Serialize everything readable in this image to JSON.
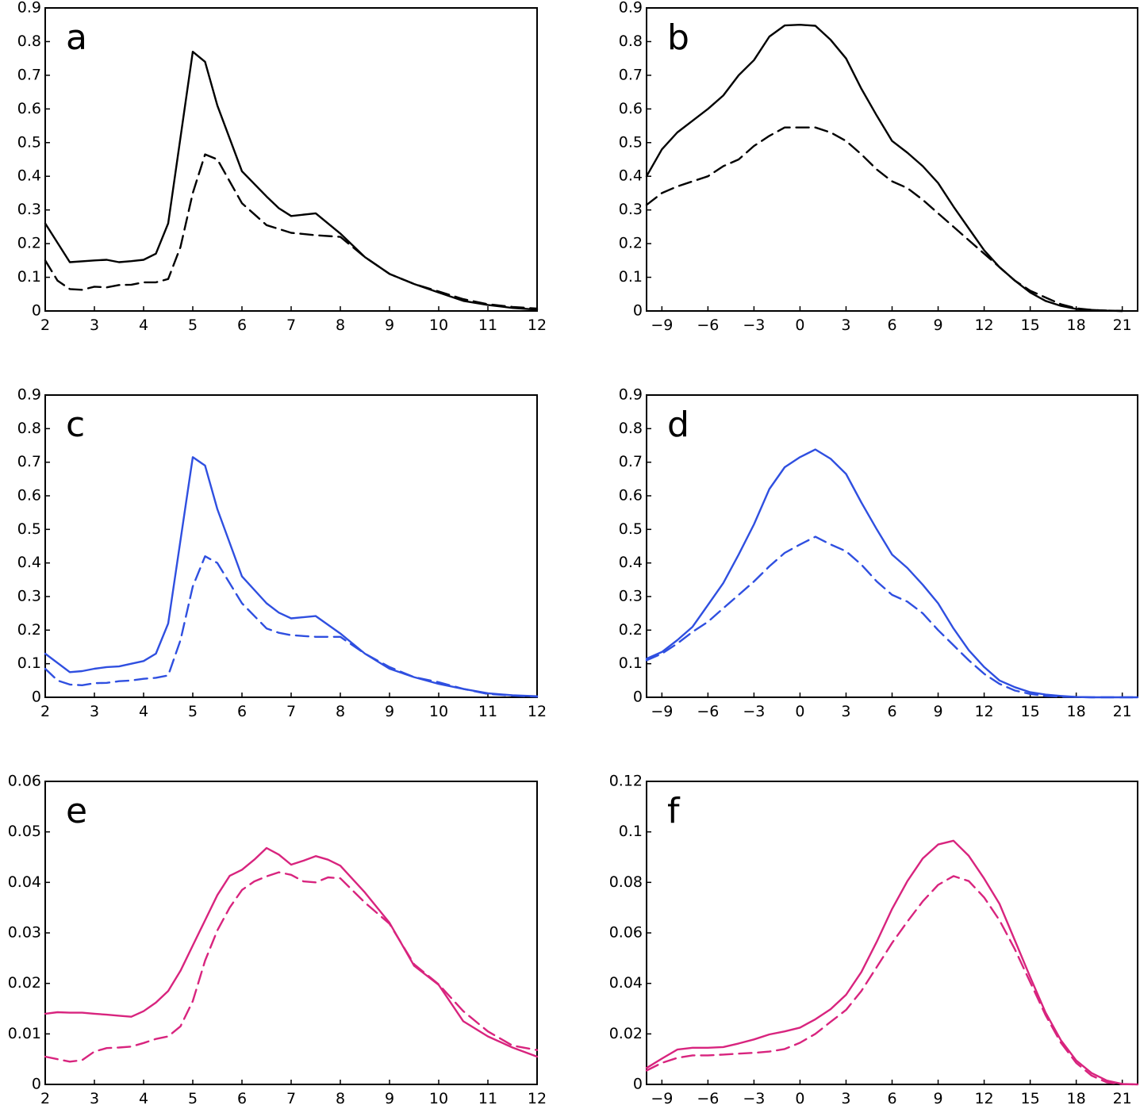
{
  "chart_data": [
    {
      "panel": "a",
      "type": "line",
      "x_ticks": [
        "2",
        "3",
        "4",
        "5",
        "6",
        "7",
        "8",
        "9",
        "10",
        "11",
        "12"
      ],
      "y_ticks": [
        "0",
        "0.1",
        "0.2",
        "0.3",
        "0.4",
        "0.5",
        "0.6",
        "0.7",
        "0.8",
        "0.9"
      ],
      "xlim": [
        2,
        12
      ],
      "ylim": [
        0,
        0.9
      ],
      "color": "#000000",
      "series": [
        {
          "name": "solid",
          "style": "solid",
          "x": [
            2,
            2.5,
            3,
            3.25,
            3.5,
            3.75,
            4,
            4.25,
            4.5,
            5,
            5.25,
            5.5,
            6,
            6.5,
            6.75,
            7,
            7.5,
            8,
            8.5,
            9,
            9.5,
            10,
            10.5,
            11,
            11.5,
            12
          ],
          "y": [
            0.26,
            0.145,
            0.15,
            0.152,
            0.145,
            0.148,
            0.152,
            0.17,
            0.26,
            0.77,
            0.74,
            0.61,
            0.415,
            0.34,
            0.305,
            0.282,
            0.29,
            0.23,
            0.16,
            0.11,
            0.08,
            0.055,
            0.03,
            0.018,
            0.009,
            0.004
          ]
        },
        {
          "name": "dashed",
          "style": "dashed",
          "x": [
            2,
            2.25,
            2.5,
            2.75,
            3,
            3.25,
            3.5,
            3.75,
            4,
            4.25,
            4.5,
            4.75,
            5,
            5.25,
            5.5,
            6,
            6.5,
            7,
            7.5,
            8,
            8.5,
            9,
            9.5,
            10,
            10.5,
            11,
            11.5,
            12
          ],
          "y": [
            0.15,
            0.09,
            0.065,
            0.063,
            0.072,
            0.07,
            0.077,
            0.078,
            0.085,
            0.085,
            0.095,
            0.19,
            0.35,
            0.465,
            0.45,
            0.32,
            0.255,
            0.232,
            0.225,
            0.22,
            0.16,
            0.11,
            0.08,
            0.058,
            0.035,
            0.02,
            0.012,
            0.007
          ]
        }
      ]
    },
    {
      "panel": "b",
      "type": "line",
      "x_ticks": [
        "−9",
        "−6",
        "−3",
        "0",
        "3",
        "6",
        "9",
        "12",
        "15",
        "18",
        "21"
      ],
      "y_ticks": [
        "0",
        "0.1",
        "0.2",
        "0.3",
        "0.4",
        "0.5",
        "0.6",
        "0.7",
        "0.8",
        "0.9"
      ],
      "xlim": [
        -10,
        22
      ],
      "ylim": [
        0,
        0.9
      ],
      "color": "#000000",
      "series": [
        {
          "name": "solid",
          "style": "solid",
          "x": [
            -10,
            -9,
            -8,
            -7,
            -6,
            -5,
            -4,
            -3,
            -2,
            -1,
            0,
            1,
            2,
            3,
            4,
            5,
            6,
            7,
            8,
            9,
            10,
            11,
            12,
            13,
            14,
            15,
            16,
            17,
            18,
            19,
            20,
            21
          ],
          "y": [
            0.4,
            0.48,
            0.53,
            0.565,
            0.6,
            0.64,
            0.7,
            0.745,
            0.815,
            0.848,
            0.85,
            0.847,
            0.805,
            0.75,
            0.66,
            0.58,
            0.505,
            0.47,
            0.43,
            0.38,
            0.31,
            0.245,
            0.18,
            0.13,
            0.09,
            0.055,
            0.03,
            0.015,
            0.006,
            0.003,
            0.001,
            0
          ]
        },
        {
          "name": "dashed",
          "style": "dashed",
          "x": [
            -10,
            -9,
            -8,
            -7,
            -6,
            -5,
            -4,
            -3,
            -2,
            -1,
            0,
            1,
            2,
            3,
            4,
            5,
            6,
            7,
            8,
            9,
            10,
            11,
            12,
            13,
            14,
            15,
            16,
            17,
            18,
            19,
            20,
            21
          ],
          "y": [
            0.315,
            0.35,
            0.37,
            0.385,
            0.4,
            0.43,
            0.45,
            0.49,
            0.52,
            0.545,
            0.545,
            0.545,
            0.53,
            0.505,
            0.465,
            0.42,
            0.385,
            0.365,
            0.33,
            0.29,
            0.25,
            0.21,
            0.17,
            0.13,
            0.09,
            0.06,
            0.04,
            0.02,
            0.008,
            0.003,
            0.001,
            0
          ]
        }
      ]
    },
    {
      "panel": "c",
      "type": "line",
      "x_ticks": [
        "2",
        "3",
        "4",
        "5",
        "6",
        "7",
        "8",
        "9",
        "10",
        "11",
        "12"
      ],
      "y_ticks": [
        "0",
        "0.1",
        "0.2",
        "0.3",
        "0.4",
        "0.5",
        "0.6",
        "0.7",
        "0.8",
        "0.9"
      ],
      "xlim": [
        2,
        12
      ],
      "ylim": [
        0,
        0.9
      ],
      "color": "#2f4fe0",
      "series": [
        {
          "name": "solid",
          "style": "solid",
          "x": [
            2,
            2.5,
            2.75,
            3,
            3.25,
            3.5,
            3.75,
            4,
            4.25,
            4.5,
            5,
            5.25,
            5.5,
            6,
            6.5,
            6.75,
            7,
            7.5,
            8,
            8.5,
            9,
            9.5,
            10,
            10.5,
            11,
            11.5,
            12
          ],
          "y": [
            0.13,
            0.075,
            0.078,
            0.085,
            0.09,
            0.092,
            0.1,
            0.108,
            0.13,
            0.22,
            0.715,
            0.69,
            0.56,
            0.36,
            0.28,
            0.252,
            0.235,
            0.242,
            0.19,
            0.13,
            0.085,
            0.06,
            0.04,
            0.025,
            0.012,
            0.006,
            0.003
          ]
        },
        {
          "name": "dashed",
          "style": "dashed",
          "x": [
            2,
            2.25,
            2.5,
            2.75,
            3,
            3.25,
            3.5,
            3.75,
            4,
            4.25,
            4.5,
            4.75,
            5,
            5.25,
            5.5,
            6,
            6.5,
            6.75,
            7,
            7.5,
            8,
            8.5,
            9,
            9.5,
            10,
            10.5,
            11,
            11.5,
            12
          ],
          "y": [
            0.085,
            0.05,
            0.038,
            0.036,
            0.042,
            0.043,
            0.048,
            0.05,
            0.055,
            0.058,
            0.065,
            0.17,
            0.33,
            0.42,
            0.4,
            0.28,
            0.205,
            0.192,
            0.185,
            0.18,
            0.18,
            0.13,
            0.09,
            0.06,
            0.045,
            0.025,
            0.01,
            0.005,
            0.002
          ]
        }
      ]
    },
    {
      "panel": "d",
      "type": "line",
      "x_ticks": [
        "−9",
        "−6",
        "−3",
        "0",
        "3",
        "6",
        "9",
        "12",
        "15",
        "18",
        "21"
      ],
      "y_ticks": [
        "0",
        "0.1",
        "0.2",
        "0.3",
        "0.4",
        "0.5",
        "0.6",
        "0.7",
        "0.8",
        "0.9"
      ],
      "xlim": [
        -10,
        22
      ],
      "ylim": [
        0,
        0.9
      ],
      "color": "#2f4fe0",
      "series": [
        {
          "name": "solid",
          "style": "solid",
          "x": [
            -10,
            -9,
            -8,
            -7,
            -6,
            -5,
            -4,
            -3,
            -2,
            -1,
            0,
            1,
            2,
            3,
            4,
            5,
            6,
            7,
            8,
            9,
            10,
            11,
            12,
            13,
            14,
            15,
            16,
            17,
            18,
            19,
            20,
            21,
            22
          ],
          "y": [
            0.115,
            0.135,
            0.17,
            0.21,
            0.275,
            0.34,
            0.425,
            0.515,
            0.62,
            0.685,
            0.715,
            0.738,
            0.71,
            0.665,
            0.58,
            0.5,
            0.425,
            0.385,
            0.335,
            0.28,
            0.205,
            0.14,
            0.09,
            0.05,
            0.03,
            0.015,
            0.008,
            0.004,
            0.001,
            0,
            0,
            0,
            0
          ]
        },
        {
          "name": "dashed",
          "style": "dashed",
          "x": [
            -10,
            -9,
            -8,
            -7,
            -6,
            -5,
            -4,
            -3,
            -2,
            -1,
            0,
            1,
            2,
            3,
            4,
            5,
            6,
            7,
            8,
            9,
            10,
            11,
            12,
            13,
            14,
            15,
            16,
            17,
            18,
            19,
            20,
            21,
            22
          ],
          "y": [
            0.11,
            0.13,
            0.16,
            0.195,
            0.225,
            0.265,
            0.305,
            0.345,
            0.39,
            0.43,
            0.455,
            0.478,
            0.455,
            0.435,
            0.395,
            0.345,
            0.305,
            0.285,
            0.25,
            0.2,
            0.155,
            0.11,
            0.07,
            0.04,
            0.02,
            0.01,
            0.004,
            0.002,
            0.001,
            0,
            0,
            0,
            0
          ]
        }
      ]
    },
    {
      "panel": "e",
      "type": "line",
      "x_ticks": [
        "2",
        "3",
        "4",
        "5",
        "6",
        "7",
        "8",
        "9",
        "10",
        "11",
        "12"
      ],
      "y_ticks": [
        "0",
        "0.01",
        "0.02",
        "0.03",
        "0.04",
        "0.05",
        "0.06"
      ],
      "xlim": [
        2,
        12
      ],
      "ylim": [
        0,
        0.06
      ],
      "color": "#d8247e",
      "series": [
        {
          "name": "solid",
          "style": "solid",
          "x": [
            2,
            2.25,
            2.5,
            2.75,
            3,
            3.25,
            3.5,
            3.75,
            4,
            4.25,
            4.5,
            4.75,
            5,
            5.25,
            5.5,
            5.75,
            6,
            6.25,
            6.5,
            6.75,
            7,
            7.25,
            7.5,
            7.75,
            8,
            8.5,
            9,
            9.5,
            10,
            10.5,
            11,
            11.5,
            12
          ],
          "y": [
            0.014,
            0.0143,
            0.0142,
            0.0142,
            0.014,
            0.0138,
            0.0136,
            0.0134,
            0.0145,
            0.0162,
            0.0185,
            0.0225,
            0.0275,
            0.0325,
            0.0375,
            0.0413,
            0.0425,
            0.0445,
            0.0468,
            0.0455,
            0.0435,
            0.0443,
            0.0452,
            0.0445,
            0.0433,
            0.038,
            0.032,
            0.0235,
            0.0197,
            0.0125,
            0.0095,
            0.0073,
            0.0055
          ]
        },
        {
          "name": "dashed",
          "style": "dashed",
          "x": [
            2,
            2.25,
            2.5,
            2.75,
            3,
            3.25,
            3.5,
            3.75,
            4,
            4.25,
            4.5,
            4.75,
            5,
            5.25,
            5.5,
            5.75,
            6,
            6.25,
            6.5,
            6.75,
            7,
            7.25,
            7.5,
            7.75,
            8,
            8.5,
            9,
            9.5,
            10,
            10.5,
            11,
            11.5,
            12
          ],
          "y": [
            0.0055,
            0.005,
            0.0045,
            0.0048,
            0.0065,
            0.0072,
            0.0073,
            0.0075,
            0.0082,
            0.009,
            0.0095,
            0.0115,
            0.0165,
            0.0245,
            0.0305,
            0.035,
            0.0385,
            0.0402,
            0.0412,
            0.042,
            0.0415,
            0.0402,
            0.04,
            0.041,
            0.0408,
            0.036,
            0.0318,
            0.0238,
            0.0198,
            0.0145,
            0.0105,
            0.0077,
            0.0068
          ]
        }
      ]
    },
    {
      "panel": "f",
      "type": "line",
      "x_ticks": [
        "−9",
        "−6",
        "−3",
        "0",
        "3",
        "6",
        "9",
        "12",
        "15",
        "18",
        "21"
      ],
      "y_ticks": [
        "0",
        "0.02",
        "0.04",
        "0.06",
        "0.08",
        "0.1",
        "0.12"
      ],
      "xlim": [
        -10,
        22
      ],
      "ylim": [
        0,
        0.12
      ],
      "color": "#d8247e",
      "series": [
        {
          "name": "solid",
          "style": "solid",
          "x": [
            -10,
            -9,
            -8,
            -7,
            -6,
            -5,
            -4,
            -3,
            -2,
            -1,
            0,
            1,
            2,
            3,
            4,
            5,
            6,
            7,
            8,
            9,
            10,
            11,
            12,
            13,
            14,
            15,
            16,
            17,
            18,
            19,
            20,
            21,
            22
          ],
          "y": [
            0.0065,
            0.0102,
            0.0138,
            0.0145,
            0.0145,
            0.0148,
            0.0162,
            0.0178,
            0.0198,
            0.021,
            0.0225,
            0.0258,
            0.0298,
            0.0355,
            0.0445,
            0.0565,
            0.0695,
            0.0805,
            0.0895,
            0.095,
            0.0965,
            0.0905,
            0.0815,
            0.0715,
            0.057,
            0.0425,
            0.0285,
            0.0175,
            0.0095,
            0.0045,
            0.0015,
            0.0002,
            0
          ]
        },
        {
          "name": "dashed",
          "style": "dashed",
          "x": [
            -10,
            -9,
            -8,
            -7,
            -6,
            -5,
            -4,
            -3,
            -2,
            -1,
            0,
            1,
            2,
            3,
            4,
            5,
            6,
            7,
            8,
            9,
            10,
            11,
            12,
            13,
            14,
            15,
            16,
            17,
            18,
            19,
            20,
            21,
            22
          ],
          "y": [
            0.0055,
            0.0085,
            0.0105,
            0.0115,
            0.0115,
            0.0118,
            0.0122,
            0.0125,
            0.013,
            0.014,
            0.0165,
            0.02,
            0.0248,
            0.0295,
            0.037,
            0.0465,
            0.056,
            0.0645,
            0.0725,
            0.079,
            0.0825,
            0.0805,
            0.074,
            0.065,
            0.0535,
            0.0405,
            0.0275,
            0.0165,
            0.0085,
            0.0035,
            0.0008,
            0.0001,
            0
          ]
        }
      ]
    }
  ]
}
